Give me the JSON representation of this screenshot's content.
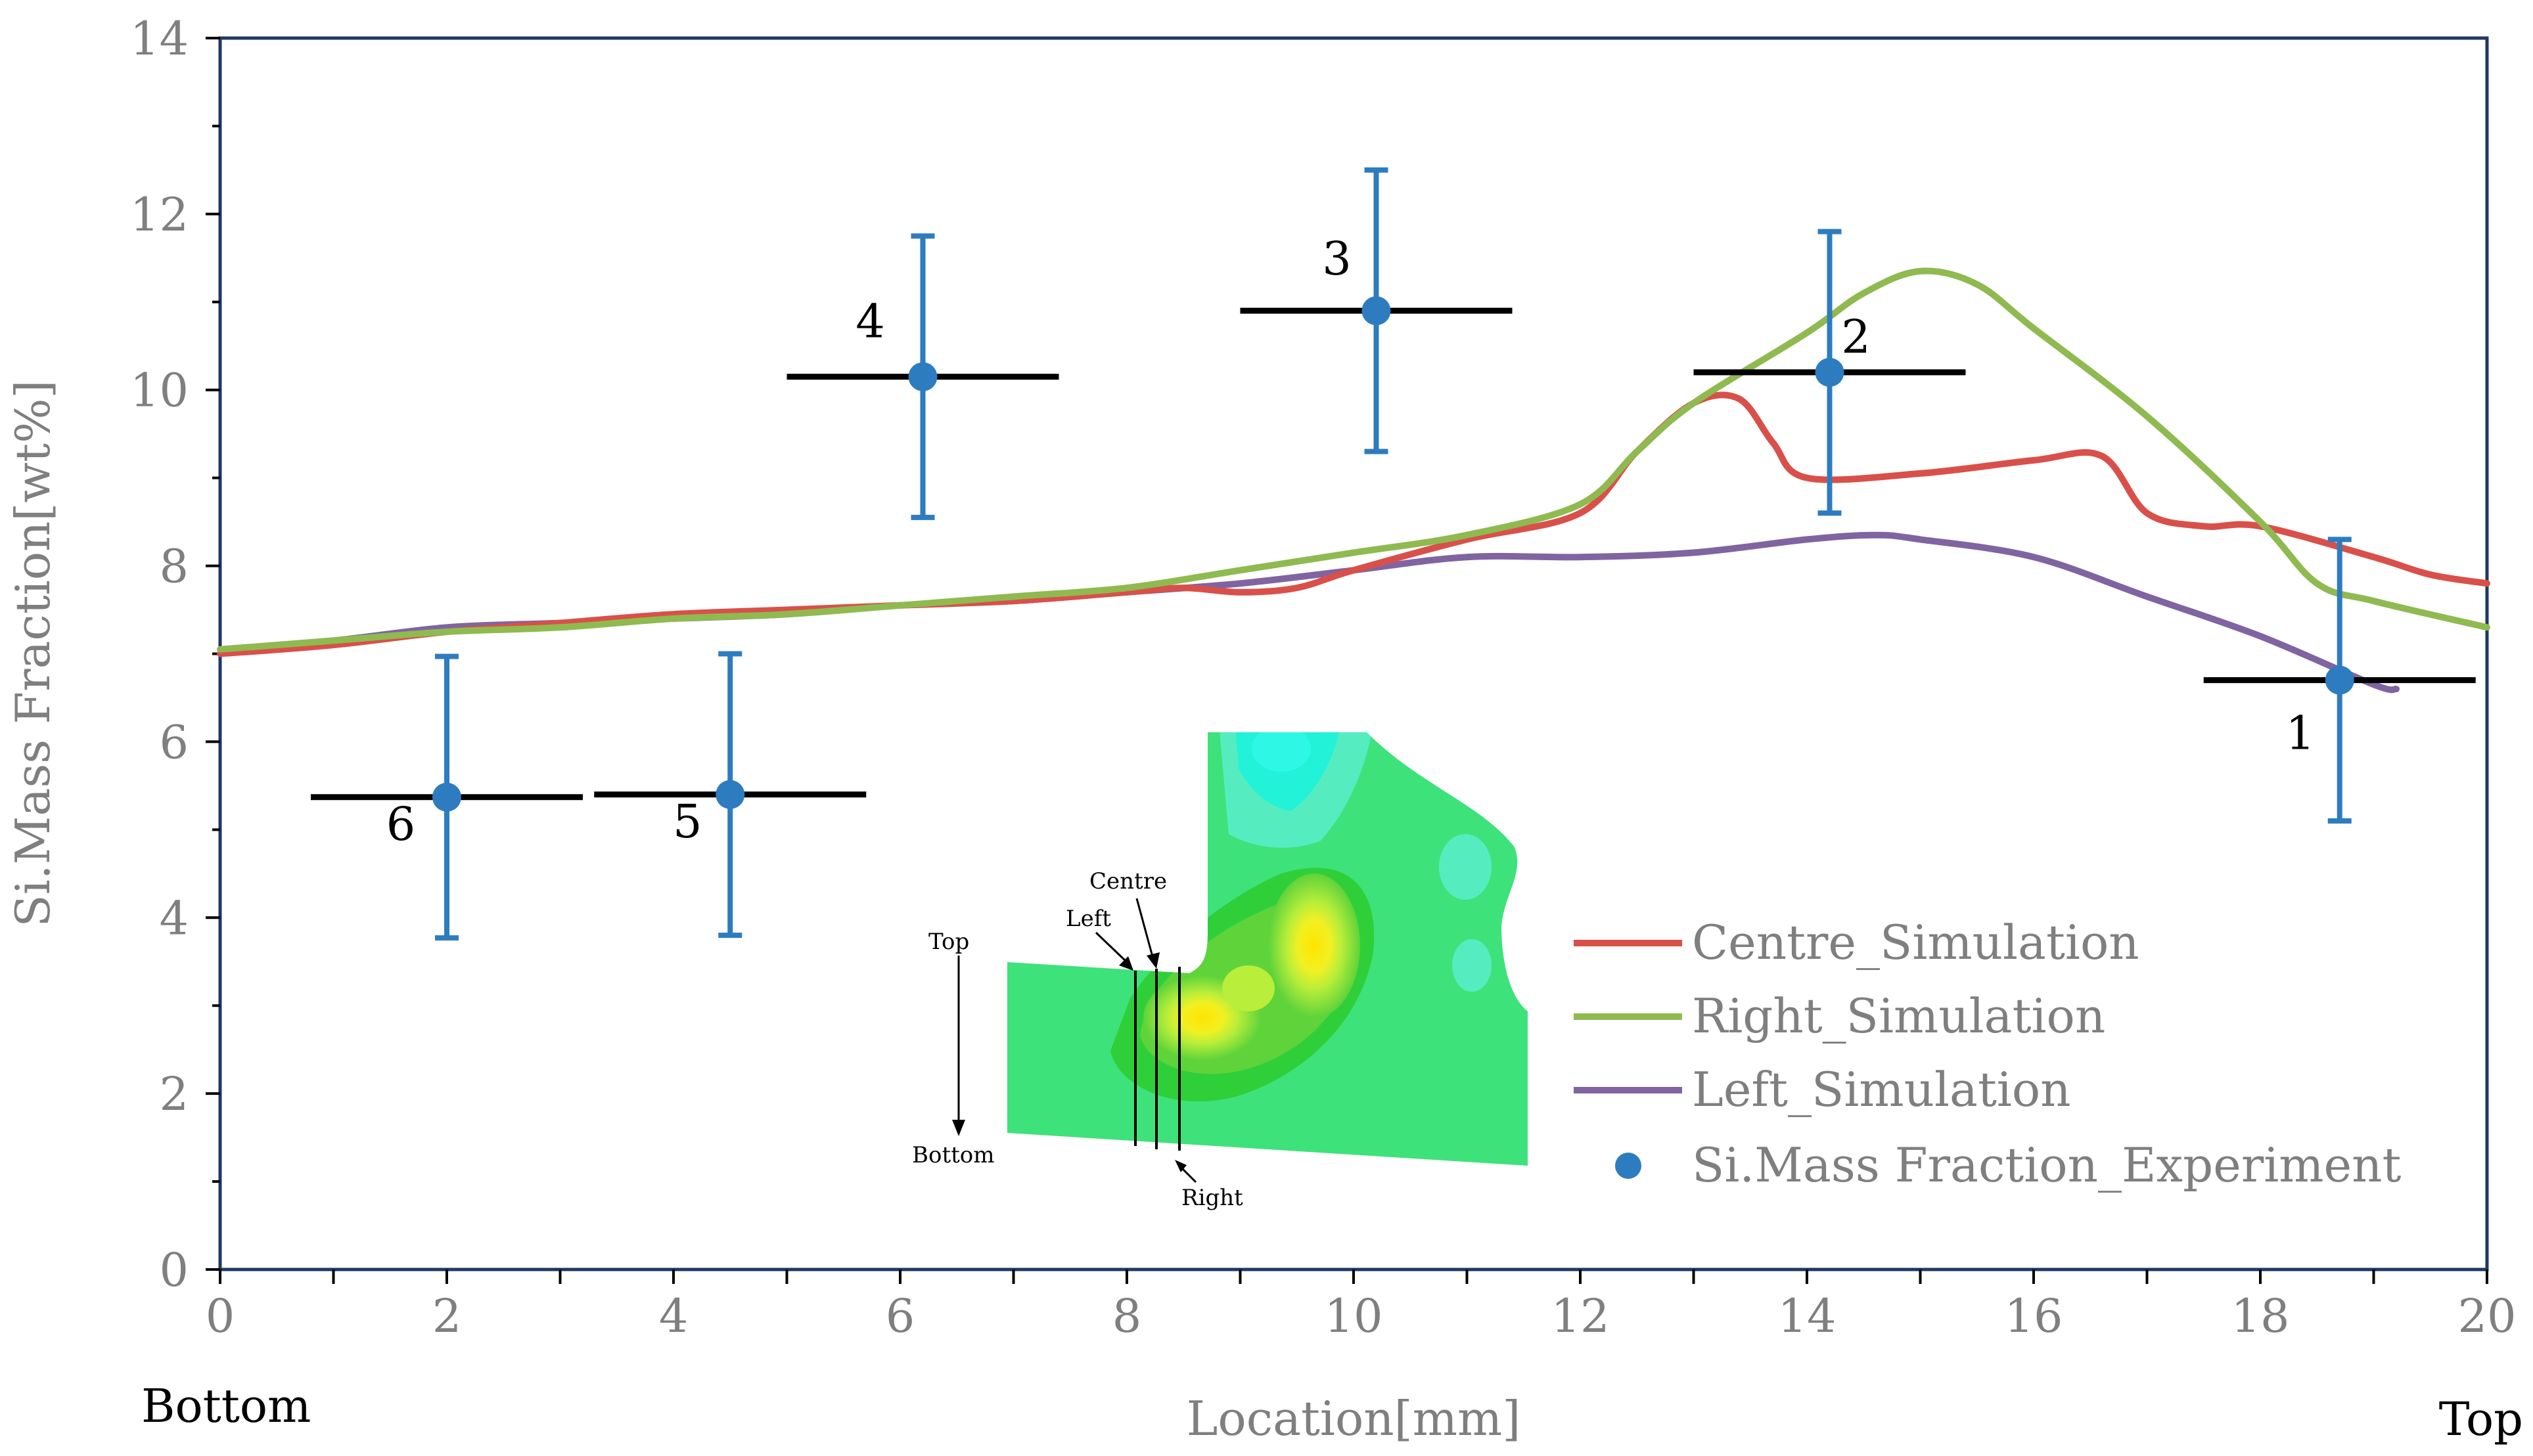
{
  "chart_data": {
    "type": "line",
    "title": "",
    "xlabel": "Location[mm]",
    "ylabel": "Si.Mass Fraction[wt%]",
    "xlim": [
      0,
      20
    ],
    "ylim": [
      0,
      14
    ],
    "x_ticks": [
      0,
      2,
      4,
      6,
      8,
      10,
      12,
      14,
      16,
      18,
      20
    ],
    "y_ticks": [
      0,
      2,
      4,
      6,
      8,
      10,
      12,
      14
    ],
    "x_end_labels": {
      "left": "Bottom",
      "right": "Top"
    },
    "grid": false,
    "legend_position": "bottom-right",
    "series": [
      {
        "name": "Centre_Simulation",
        "color": "#d9504a",
        "kind": "line",
        "points": [
          [
            0,
            7.0
          ],
          [
            1,
            7.1
          ],
          [
            2,
            7.25
          ],
          [
            3,
            7.35
          ],
          [
            4,
            7.45
          ],
          [
            5,
            7.5
          ],
          [
            6,
            7.55
          ],
          [
            7,
            7.6
          ],
          [
            8,
            7.7
          ],
          [
            8.5,
            7.75
          ],
          [
            9,
            7.7
          ],
          [
            9.5,
            7.75
          ],
          [
            10,
            7.95
          ],
          [
            11,
            8.3
          ],
          [
            12,
            8.6
          ],
          [
            12.5,
            9.3
          ],
          [
            13,
            9.85
          ],
          [
            13.4,
            9.9
          ],
          [
            13.7,
            9.4
          ],
          [
            14,
            9.0
          ],
          [
            15,
            9.05
          ],
          [
            16,
            9.2
          ],
          [
            16.6,
            9.25
          ],
          [
            17,
            8.6
          ],
          [
            17.5,
            8.45
          ],
          [
            18,
            8.45
          ],
          [
            19,
            8.1
          ],
          [
            19.5,
            7.9
          ],
          [
            20,
            7.8
          ]
        ]
      },
      {
        "name": "Right_Simulation",
        "color": "#8fba50",
        "kind": "line",
        "points": [
          [
            0,
            7.05
          ],
          [
            1,
            7.15
          ],
          [
            2,
            7.25
          ],
          [
            3,
            7.3
          ],
          [
            4,
            7.4
          ],
          [
            5,
            7.45
          ],
          [
            6,
            7.55
          ],
          [
            7,
            7.65
          ],
          [
            8,
            7.75
          ],
          [
            9,
            7.95
          ],
          [
            10,
            8.15
          ],
          [
            11,
            8.35
          ],
          [
            12,
            8.7
          ],
          [
            12.5,
            9.3
          ],
          [
            13,
            9.85
          ],
          [
            14,
            10.65
          ],
          [
            14.5,
            11.1
          ],
          [
            15,
            11.35
          ],
          [
            15.5,
            11.2
          ],
          [
            16,
            10.7
          ],
          [
            17,
            9.7
          ],
          [
            18,
            8.5
          ],
          [
            18.5,
            7.8
          ],
          [
            19,
            7.6
          ],
          [
            20,
            7.3
          ]
        ]
      },
      {
        "name": "Left_Simulation",
        "color": "#8064a2",
        "kind": "line",
        "points": [
          [
            0,
            7.05
          ],
          [
            1,
            7.15
          ],
          [
            2,
            7.3
          ],
          [
            3,
            7.35
          ],
          [
            4,
            7.4
          ],
          [
            5,
            7.45
          ],
          [
            6,
            7.55
          ],
          [
            7,
            7.6
          ],
          [
            8,
            7.7
          ],
          [
            9,
            7.8
          ],
          [
            10,
            7.95
          ],
          [
            11,
            8.1
          ],
          [
            12,
            8.1
          ],
          [
            13,
            8.15
          ],
          [
            14,
            8.3
          ],
          [
            14.6,
            8.35
          ],
          [
            15,
            8.3
          ],
          [
            16,
            8.1
          ],
          [
            17,
            7.65
          ],
          [
            18,
            7.2
          ],
          [
            19,
            6.65
          ],
          [
            19.2,
            6.6
          ]
        ]
      },
      {
        "name": "Si.Mass Fraction_Experiment",
        "color": "#2e7cc0",
        "kind": "scatter",
        "points": [
          {
            "label": "1",
            "x": 18.7,
            "y": 6.7,
            "y_err": 1.6,
            "x_range": [
              17.5,
              19.9
            ]
          },
          {
            "label": "2",
            "x": 14.2,
            "y": 10.2,
            "y_err": 1.6,
            "x_range": [
              13.0,
              15.4
            ]
          },
          {
            "label": "3",
            "x": 10.2,
            "y": 10.9,
            "y_err": 1.6,
            "x_range": [
              9.0,
              11.4
            ]
          },
          {
            "label": "4",
            "x": 6.2,
            "y": 10.15,
            "y_err": 1.6,
            "x_range": [
              5.0,
              7.4
            ]
          },
          {
            "label": "5",
            "x": 4.5,
            "y": 5.4,
            "y_err": 1.6,
            "x_range": [
              3.3,
              5.7
            ]
          },
          {
            "label": "6",
            "x": 2.0,
            "y": 5.37,
            "y_err": 1.6,
            "x_range": [
              0.8,
              3.2
            ]
          }
        ]
      }
    ],
    "inset": {
      "description": "simulated Si distribution contour with line locations",
      "labels": {
        "top": "Top",
        "bottom": "Bottom",
        "centre": "Centre",
        "left": "Left",
        "right": "Right"
      }
    }
  }
}
